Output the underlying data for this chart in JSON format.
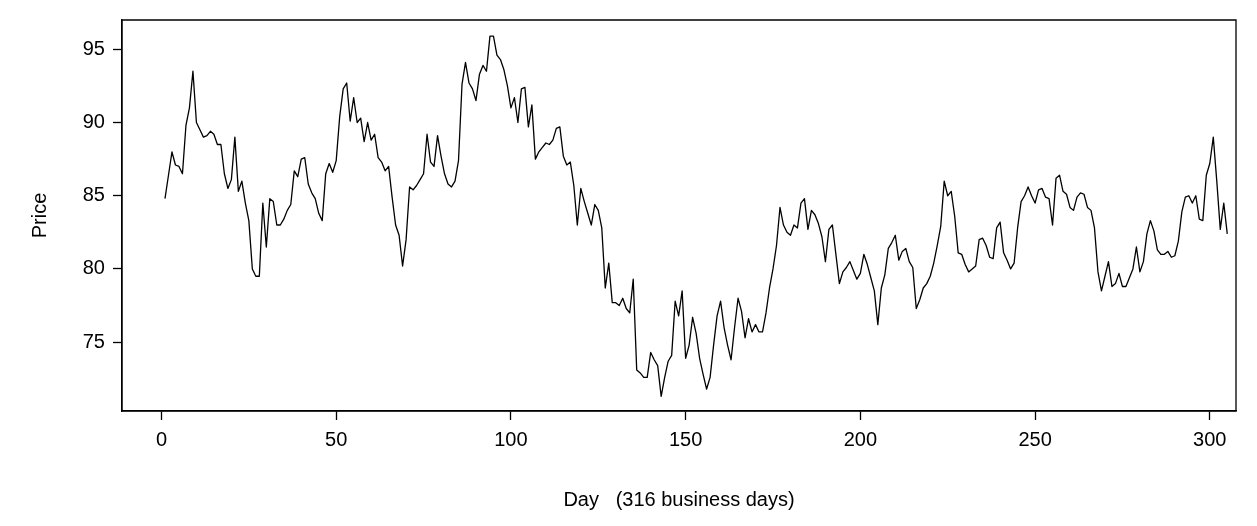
{
  "chart_data": {
    "type": "line",
    "xlabel": "Day   (316 business days)",
    "ylabel": "Price",
    "color": "#000000",
    "xlim": [
      -11.3,
      307.5
    ],
    "ylim": [
      70.3,
      97.0
    ],
    "xticks": [
      0,
      50,
      100,
      150,
      200,
      250,
      300
    ],
    "yticks": [
      75,
      80,
      85,
      90,
      95
    ],
    "x": [
      1,
      2,
      3,
      4,
      5,
      6,
      7,
      8,
      9,
      10,
      11,
      12,
      13,
      14,
      15,
      16,
      17,
      18,
      19,
      20,
      21,
      22,
      23,
      24,
      25,
      26,
      27,
      28,
      29,
      30,
      31,
      32,
      33,
      34,
      35,
      36,
      37,
      38,
      39,
      40,
      41,
      42,
      43,
      44,
      45,
      46,
      47,
      48,
      49,
      50,
      51,
      52,
      53,
      54,
      55,
      56,
      57,
      58,
      59,
      60,
      61,
      62,
      63,
      64,
      65,
      66,
      67,
      68,
      69,
      70,
      71,
      72,
      73,
      74,
      75,
      76,
      77,
      78,
      79,
      80,
      81,
      82,
      83,
      84,
      85,
      86,
      87,
      88,
      89,
      90,
      91,
      92,
      93,
      94,
      95,
      96,
      97,
      98,
      99,
      100,
      101,
      102,
      103,
      104,
      105,
      106,
      107,
      108,
      109,
      110,
      111,
      112,
      113,
      114,
      115,
      116,
      117,
      118,
      119,
      120,
      121,
      122,
      123,
      124,
      125,
      126,
      127,
      128,
      129,
      130,
      131,
      132,
      133,
      134,
      135,
      136,
      137,
      138,
      139,
      140,
      141,
      142,
      143,
      144,
      145,
      146,
      147,
      148,
      149,
      150,
      151,
      152,
      153,
      154,
      155,
      156,
      157,
      158,
      159,
      160,
      161,
      162,
      163,
      164,
      165,
      166,
      167,
      168,
      169,
      170,
      171,
      172,
      173,
      174,
      175,
      176,
      177,
      178,
      179,
      180,
      181,
      182,
      183,
      184,
      185,
      186,
      187,
      188,
      189,
      190,
      191,
      192,
      193,
      194,
      195,
      196,
      197,
      198,
      199,
      200,
      201,
      202,
      203,
      204,
      205,
      206,
      207,
      208,
      209,
      210,
      211,
      212,
      213,
      214,
      215,
      216,
      217,
      218,
      219,
      220,
      221,
      222,
      223,
      224,
      225,
      226,
      227,
      228,
      229,
      230,
      231,
      232,
      233,
      234,
      235,
      236,
      237,
      238,
      239,
      240,
      241,
      242,
      243,
      244,
      245,
      246,
      247,
      248,
      249,
      250,
      251,
      252,
      253,
      254,
      255,
      256,
      257,
      258,
      259,
      260,
      261,
      262,
      263,
      264,
      265,
      266,
      267,
      268,
      269,
      270,
      271,
      272,
      273,
      274,
      275,
      276,
      277,
      278,
      279,
      280,
      281,
      282,
      283,
      284,
      285,
      286,
      287,
      288,
      289,
      290,
      291,
      292,
      293,
      294,
      295,
      296,
      297,
      298,
      299,
      300,
      301,
      302,
      303,
      304,
      305
    ],
    "values": [
      84.8,
      86.4,
      88.0,
      87.1,
      87.0,
      86.5,
      89.8,
      91.0,
      93.5,
      90.0,
      89.5,
      89.0,
      89.1,
      89.4,
      89.2,
      88.5,
      88.5,
      86.5,
      85.5,
      86.1,
      89.0,
      85.3,
      86.0,
      84.5,
      83.3,
      80.0,
      79.5,
      79.5,
      84.5,
      81.5,
      84.8,
      84.6,
      83.0,
      83.0,
      83.4,
      84.0,
      84.4,
      86.7,
      86.3,
      87.5,
      87.6,
      85.8,
      85.2,
      84.8,
      83.8,
      83.3,
      86.5,
      87.2,
      86.6,
      87.4,
      90.4,
      92.3,
      92.7,
      90.1,
      91.7,
      90.0,
      90.3,
      88.7,
      90.0,
      88.8,
      89.2,
      87.6,
      87.3,
      86.7,
      87.0,
      84.9,
      83.0,
      82.3,
      80.2,
      82.0,
      85.6,
      85.4,
      85.7,
      86.1,
      86.5,
      89.2,
      87.3,
      87.0,
      89.1,
      87.7,
      86.5,
      85.8,
      85.6,
      86.0,
      87.4,
      92.6,
      94.1,
      92.7,
      92.3,
      91.5,
      93.3,
      93.9,
      93.5,
      95.9,
      95.9,
      94.6,
      94.3,
      93.6,
      92.5,
      91.0,
      91.7,
      90.0,
      92.3,
      92.4,
      89.7,
      91.2,
      87.5,
      88.0,
      88.3,
      88.6,
      88.5,
      88.8,
      89.6,
      89.7,
      87.7,
      87.1,
      87.3,
      85.7,
      83.0,
      85.5,
      84.6,
      83.8,
      83.0,
      84.4,
      84.0,
      82.8,
      78.7,
      80.4,
      77.7,
      77.7,
      77.5,
      78.0,
      77.3,
      77.0,
      79.3,
      73.1,
      72.9,
      72.6,
      72.6,
      74.3,
      73.8,
      73.4,
      71.3,
      72.6,
      73.7,
      74.1,
      77.8,
      76.8,
      78.5,
      73.9,
      74.8,
      76.7,
      75.6,
      73.9,
      72.8,
      71.8,
      72.6,
      74.8,
      76.8,
      77.8,
      76.0,
      74.8,
      73.8,
      76.0,
      78.0,
      77.1,
      75.3,
      76.6,
      75.7,
      76.2,
      75.7,
      75.7,
      77.0,
      78.7,
      80.0,
      81.6,
      84.2,
      83.0,
      82.5,
      82.3,
      83.0,
      82.8,
      84.5,
      84.8,
      82.7,
      84.0,
      83.7,
      83.1,
      82.2,
      80.5,
      82.7,
      83.0,
      81.0,
      79.0,
      79.8,
      80.1,
      80.5,
      79.9,
      79.3,
      79.7,
      81.0,
      80.3,
      79.4,
      78.5,
      76.2,
      78.7,
      79.6,
      81.4,
      81.8,
      82.3,
      80.6,
      81.2,
      81.4,
      80.5,
      80.1,
      77.3,
      77.9,
      78.7,
      79.0,
      79.5,
      80.4,
      81.6,
      82.9,
      86.0,
      85.0,
      85.3,
      83.6,
      81.1,
      81.0,
      80.3,
      79.8,
      80.0,
      80.2,
      82.0,
      82.1,
      81.6,
      80.8,
      80.7,
      82.8,
      83.2,
      81.1,
      80.6,
      80.0,
      80.4,
      82.8,
      84.6,
      85.0,
      85.6,
      85.0,
      84.5,
      85.4,
      85.5,
      84.9,
      84.8,
      83.0,
      86.2,
      86.4,
      85.3,
      85.1,
      84.2,
      84.0,
      84.9,
      85.2,
      85.1,
      84.2,
      84.0,
      82.8,
      79.8,
      78.5,
      79.5,
      80.5,
      78.8,
      79.0,
      79.7,
      78.8,
      78.8,
      79.4,
      80.0,
      81.5,
      79.8,
      80.5,
      82.4,
      83.3,
      82.6,
      81.3,
      81.0,
      81.0,
      81.2,
      80.8,
      80.9,
      81.9,
      83.9,
      84.9,
      85.0,
      84.5,
      85.0,
      83.4,
      83.3,
      86.4,
      87.2,
      89.0,
      86.0,
      82.7,
      84.5,
      82.4
    ]
  }
}
